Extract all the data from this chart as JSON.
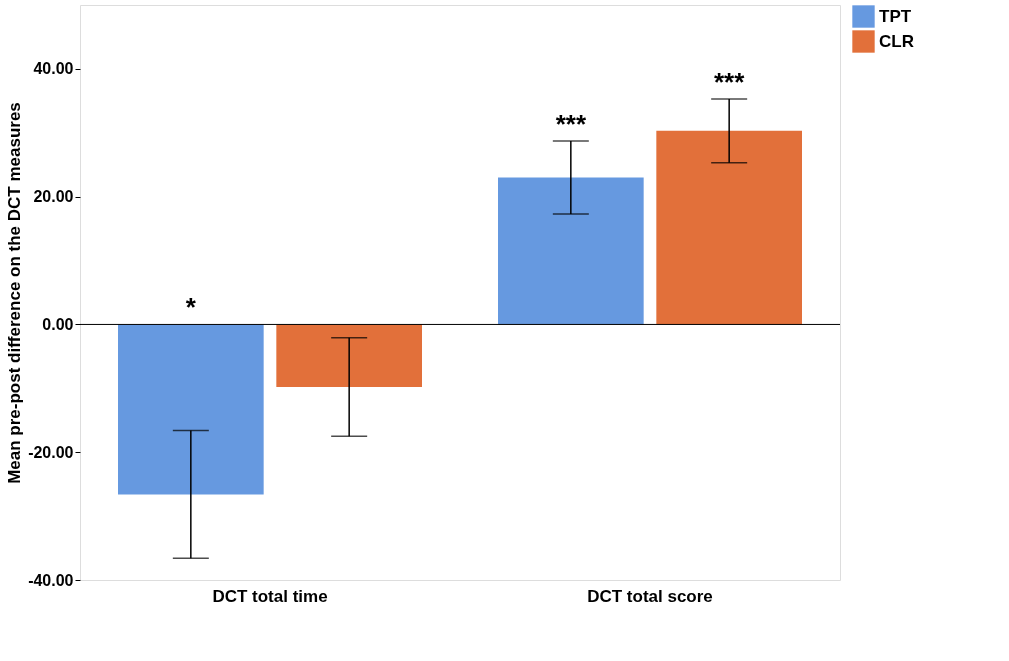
{
  "chart_data": {
    "type": "bar",
    "categories": [
      "DCT total time",
      "DCT total score"
    ],
    "ylabel": "Mean pre-post difference on the DCT measures",
    "series": [
      {
        "name": "TPT",
        "color": "#6699e0",
        "values": [
          -26.6,
          23.0
        ],
        "errors": [
          10.0,
          5.7
        ]
      },
      {
        "name": "CLR",
        "color": "#e2703a",
        "values": [
          -9.8,
          30.3
        ],
        "errors": [
          7.7,
          5.0
        ]
      }
    ],
    "ylim": [
      -40,
      50
    ],
    "yticks": [
      {
        "value": -40,
        "label": "-40.00"
      },
      {
        "value": -20,
        "label": "-20.00"
      },
      {
        "value": 0,
        "label": "0.00"
      },
      {
        "value": 20,
        "label": "20.00"
      },
      {
        "value": 40,
        "label": "40.00"
      }
    ],
    "ref_lines": [
      {
        "axis": "y",
        "value": 0,
        "color": "#000000"
      }
    ],
    "annotations": [
      "*",
      "***",
      "***"
    ],
    "grid": false,
    "legend": "top right"
  }
}
